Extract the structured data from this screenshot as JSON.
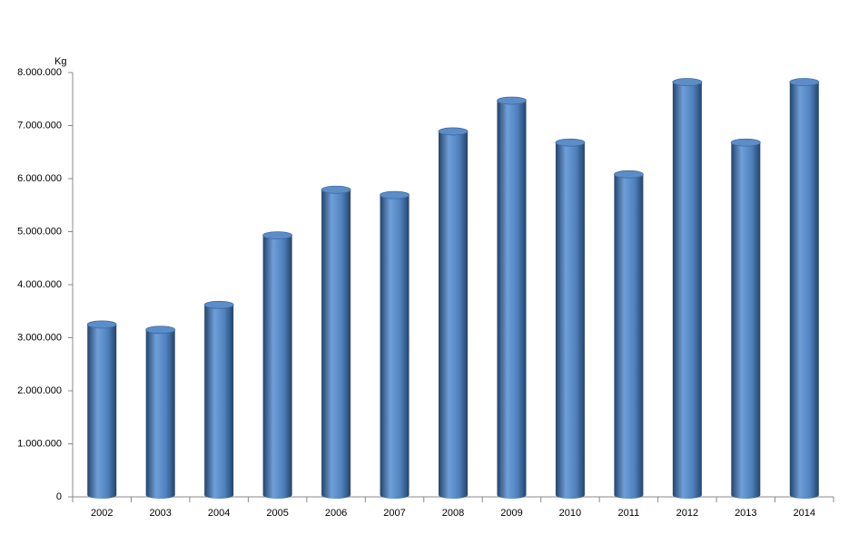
{
  "chart_data": {
    "type": "bar",
    "y_label": "Kg",
    "categories": [
      "2002",
      "2003",
      "2004",
      "2005",
      "2006",
      "2007",
      "2008",
      "2009",
      "2010",
      "2011",
      "2012",
      "2013",
      "2014"
    ],
    "values": [
      3250000,
      3150000,
      3620000,
      4930000,
      5790000,
      5690000,
      6890000,
      7470000,
      6680000,
      6080000,
      7820000,
      6680000,
      7820000
    ],
    "color": "#4f81bd",
    "ylim": [
      0,
      8000000
    ],
    "yticks": [
      0,
      {
        "value": 1000000,
        "label": "1.000.000"
      },
      {
        "value": 2000000,
        "label": "2.000.000"
      },
      {
        "value": 3000000,
        "label": "3.000.000"
      },
      {
        "value": 4000000,
        "label": "4.000.000"
      },
      {
        "value": 5000000,
        "label": "5.000.000"
      },
      {
        "value": 6000000,
        "label": "6.000.000"
      },
      {
        "value": 7000000,
        "label": "7.000.000"
      },
      {
        "value": 8000000,
        "label": "8.000.000"
      }
    ],
    "grid": false
  }
}
